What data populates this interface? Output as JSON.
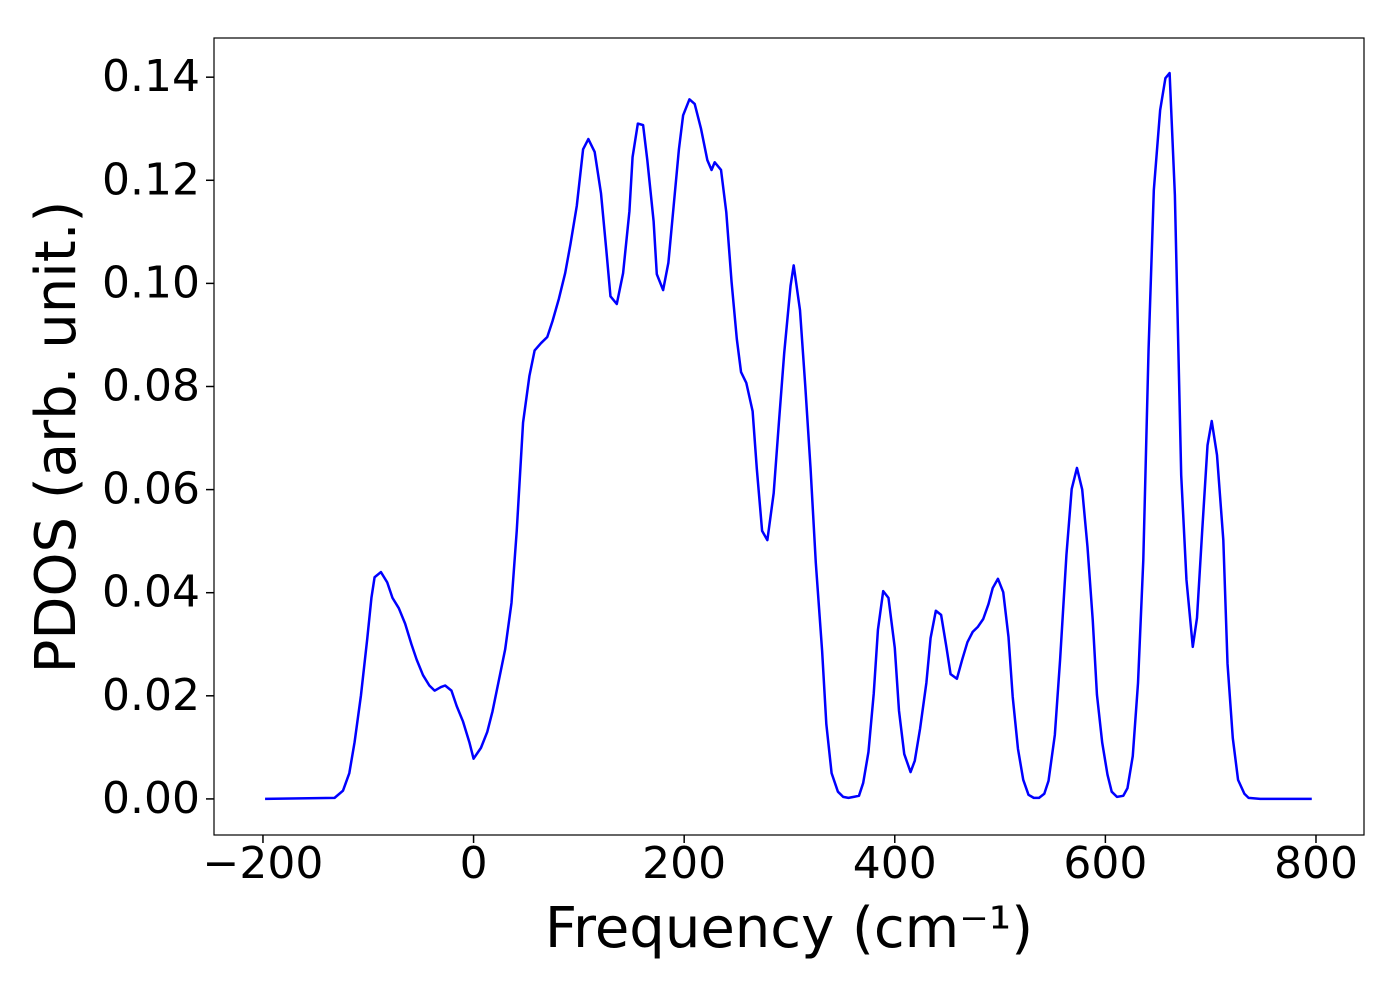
{
  "chart_data": {
    "type": "line",
    "xlabel": "Frequency (cm⁻¹)",
    "ylabel": "PDOS (arb. unit.)",
    "color": "#0000ff",
    "grid": false,
    "xlim": [
      -246.5,
      845.6
    ],
    "ylim": [
      -0.007,
      0.1476
    ],
    "xticks": [
      {
        "value": -200,
        "label": "−200"
      },
      0,
      200,
      400,
      600,
      800
    ],
    "yticks": [
      {
        "value": 0,
        "label": "0.00"
      },
      {
        "value": 0.02,
        "label": "0.02"
      },
      {
        "value": 0.04,
        "label": "0.04"
      },
      {
        "value": 0.06,
        "label": "0.06"
      },
      {
        "value": 0.08,
        "label": "0.08"
      },
      {
        "value": 0.1,
        "label": "0.10"
      },
      {
        "value": 0.12,
        "label": "0.12"
      },
      {
        "value": 0.14,
        "label": "0.14"
      }
    ],
    "x": [
      -198,
      -132,
      -124,
      -118,
      -113,
      -107,
      -101,
      -97,
      -94,
      -88,
      -82,
      -77,
      -71,
      -65,
      -59,
      -54,
      -48,
      -42,
      -37,
      -31,
      -27,
      -21,
      -16,
      -10,
      -4,
      0,
      7,
      13,
      18,
      24,
      30,
      36,
      41,
      47,
      53,
      58,
      64,
      70,
      75,
      81,
      87,
      92,
      98,
      104,
      109,
      115,
      121,
      126,
      130,
      136,
      142,
      148,
      151,
      156,
      161,
      165,
      171,
      174,
      180,
      185,
      190,
      195,
      199,
      205,
      210,
      216,
      222,
      226,
      229,
      235,
      240,
      245,
      250,
      254,
      259,
      265,
      269,
      274,
      279,
      285,
      290,
      295,
      301,
      304,
      310,
      315,
      320,
      325,
      331,
      335,
      340,
      346,
      351,
      356,
      361,
      366,
      370,
      375,
      380,
      384,
      389,
      394,
      400,
      404,
      409,
      415,
      419,
      424,
      430,
      434,
      439,
      444,
      449,
      453,
      459,
      464,
      469,
      474,
      479,
      484,
      489,
      493,
      498,
      503,
      508,
      512,
      517,
      522,
      527,
      532,
      537,
      542,
      546,
      552,
      557,
      563,
      568,
      573,
      578,
      583,
      588,
      592,
      597,
      602,
      606,
      611,
      617,
      621,
      626,
      631,
      636,
      641,
      646,
      652,
      657,
      661,
      666,
      672,
      677,
      683,
      687,
      692,
      697,
      701,
      706,
      712,
      716,
      721,
      726,
      732,
      736,
      747,
      796
    ],
    "values": [
      0,
      0.0002,
      0.0016,
      0.005,
      0.011,
      0.02,
      0.031,
      0.039,
      0.043,
      0.044,
      0.042,
      0.039,
      0.037,
      0.034,
      0.03,
      0.027,
      0.024,
      0.022,
      0.021,
      0.0217,
      0.022,
      0.021,
      0.018,
      0.015,
      0.011,
      0.0078,
      0.0099,
      0.013,
      0.017,
      0.023,
      0.029,
      0.038,
      0.052,
      0.073,
      0.082,
      0.087,
      0.0884,
      0.0896,
      0.0927,
      0.097,
      0.102,
      0.1076,
      0.115,
      0.126,
      0.128,
      0.1255,
      0.1175,
      0.1066,
      0.0975,
      0.096,
      0.102,
      0.114,
      0.1245,
      0.131,
      0.1307,
      0.1239,
      0.112,
      0.1018,
      0.0987,
      0.104,
      0.115,
      0.126,
      0.1326,
      0.1357,
      0.1348,
      0.13,
      0.1239,
      0.122,
      0.1235,
      0.122,
      0.1138,
      0.1003,
      0.0892,
      0.0828,
      0.0807,
      0.0752,
      0.064,
      0.052,
      0.0502,
      0.0593,
      0.0731,
      0.0865,
      0.0995,
      0.1035,
      0.0948,
      0.0801,
      0.0642,
      0.0458,
      0.0287,
      0.0145,
      0.005,
      0.0014,
      0.0004,
      0.0002,
      0.0004,
      0.0006,
      0.0031,
      0.0091,
      0.0204,
      0.0328,
      0.0403,
      0.039,
      0.0293,
      0.0171,
      0.0087,
      0.0052,
      0.0074,
      0.0136,
      0.0225,
      0.0312,
      0.0365,
      0.0357,
      0.0295,
      0.0242,
      0.0233,
      0.027,
      0.0304,
      0.0324,
      0.0334,
      0.0349,
      0.0378,
      0.0409,
      0.0427,
      0.0401,
      0.0314,
      0.0198,
      0.0097,
      0.0037,
      0.0008,
      0.0002,
      0.0002,
      0.001,
      0.0035,
      0.0124,
      0.027,
      0.0473,
      0.0601,
      0.0642,
      0.06,
      0.0489,
      0.0347,
      0.0202,
      0.0109,
      0.0047,
      0.0014,
      0.0004,
      0.0006,
      0.0021,
      0.0083,
      0.0225,
      0.0463,
      0.0871,
      0.1181,
      0.1336,
      0.1398,
      0.1408,
      0.1171,
      0.0628,
      0.0425,
      0.0295,
      0.0351,
      0.0522,
      0.0686,
      0.0733,
      0.0667,
      0.0502,
      0.0262,
      0.0118,
      0.0037,
      0.001,
      0.0002,
      0,
      0
    ]
  }
}
